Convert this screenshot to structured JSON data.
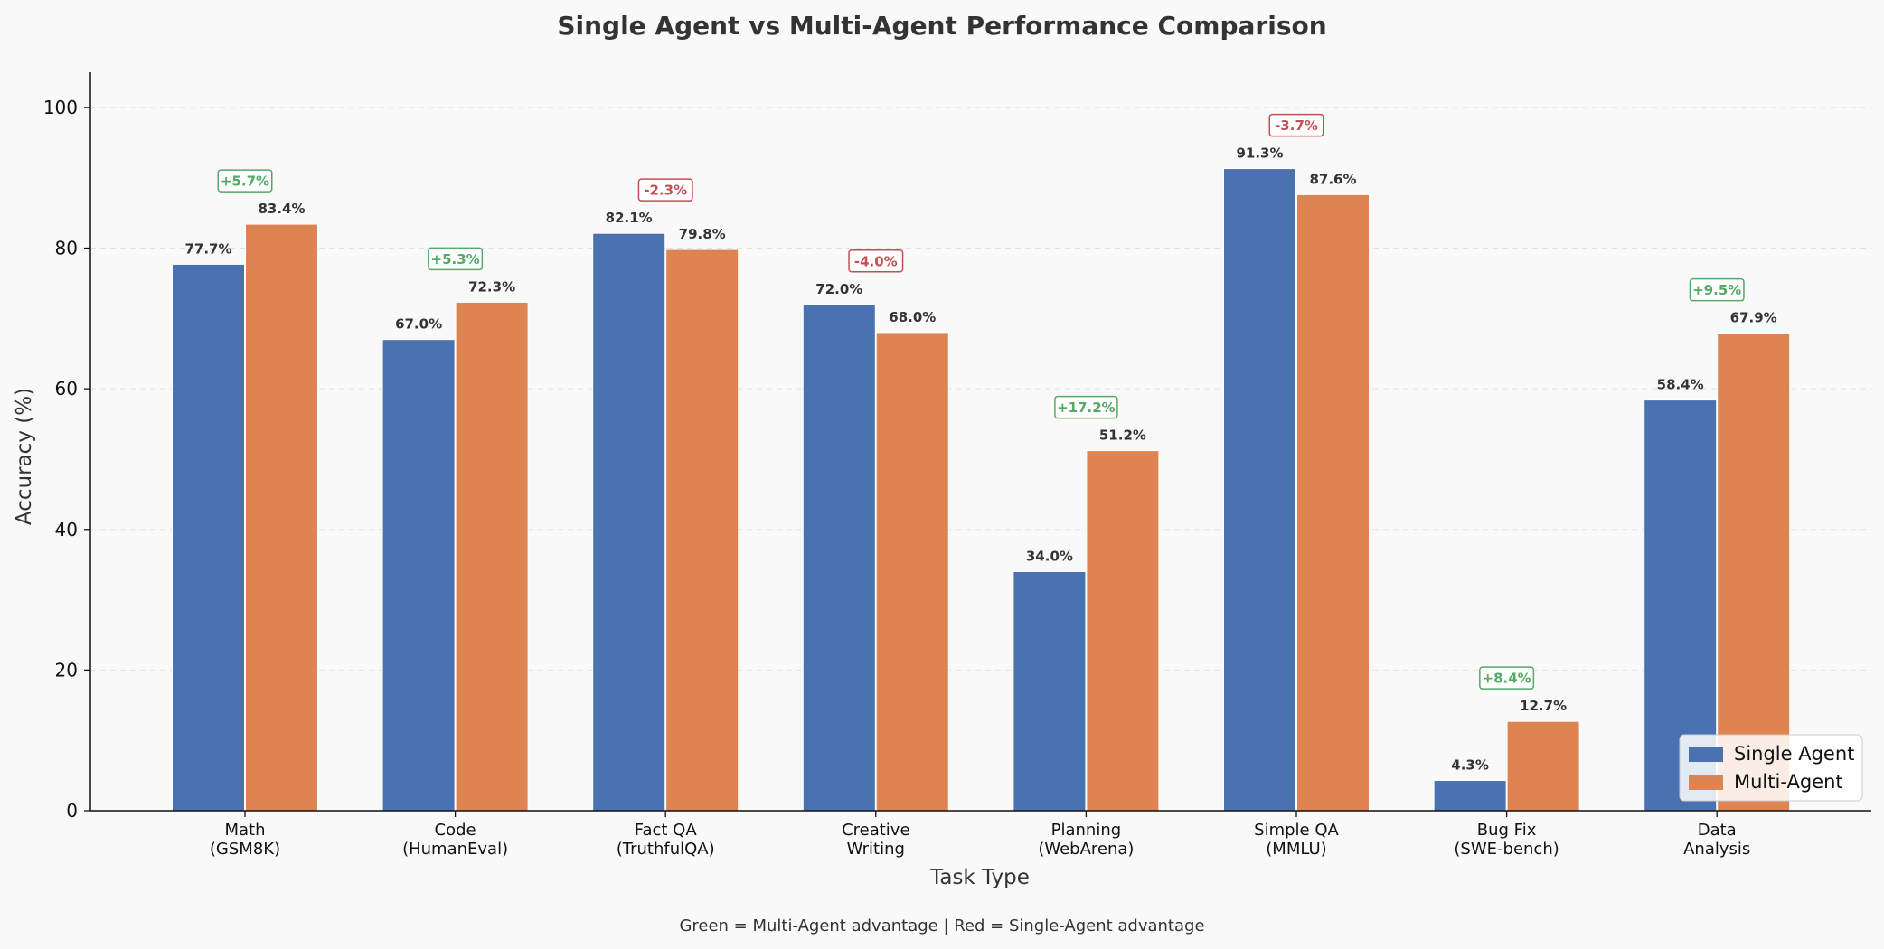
{
  "chart_data": {
    "type": "bar",
    "title": "Single Agent vs Multi-Agent Performance Comparison",
    "xlabel": "Task Type",
    "ylabel": "Accuracy (%)",
    "ylim": [
      0,
      105
    ],
    "yticks": [
      0,
      20,
      40,
      60,
      80,
      100
    ],
    "grid": "horizontal dashed",
    "legend_position": "bottom-right",
    "categories": [
      [
        "Math",
        "(GSM8K)"
      ],
      [
        "Code",
        "(HumanEval)"
      ],
      [
        "Fact QA",
        "(TruthfulQA)"
      ],
      [
        "Creative",
        "Writing"
      ],
      [
        "Planning",
        "(WebArena)"
      ],
      [
        "Simple QA",
        "(MMLU)"
      ],
      [
        "Bug Fix",
        "(SWE-bench)"
      ],
      [
        "Data",
        "Analysis"
      ]
    ],
    "series": [
      {
        "name": "Single Agent",
        "color": "#4a72b0",
        "values": [
          77.7,
          67.0,
          82.1,
          72.0,
          34.0,
          91.3,
          4.3,
          58.4
        ],
        "labels": [
          "77.7%",
          "67.0%",
          "82.1%",
          "72.0%",
          "34.0%",
          "91.3%",
          "4.3%",
          "58.4%"
        ]
      },
      {
        "name": "Multi-Agent",
        "color": "#dd8452",
        "values": [
          83.4,
          72.3,
          79.8,
          68.0,
          51.2,
          87.6,
          12.7,
          67.9
        ],
        "labels": [
          "83.4%",
          "72.3%",
          "79.8%",
          "68.0%",
          "51.2%",
          "87.6%",
          "12.7%",
          "67.9%"
        ]
      }
    ],
    "differences": [
      "+5.7%",
      "+5.3%",
      "-2.3%",
      "-4.0%",
      "+17.2%",
      "-3.7%",
      "+8.4%",
      "+9.5%"
    ],
    "positive_color": "#55a868",
    "negative_color": "#c44e52",
    "footnote": "Green = Multi-Agent advantage | Red = Single-Agent advantage"
  }
}
